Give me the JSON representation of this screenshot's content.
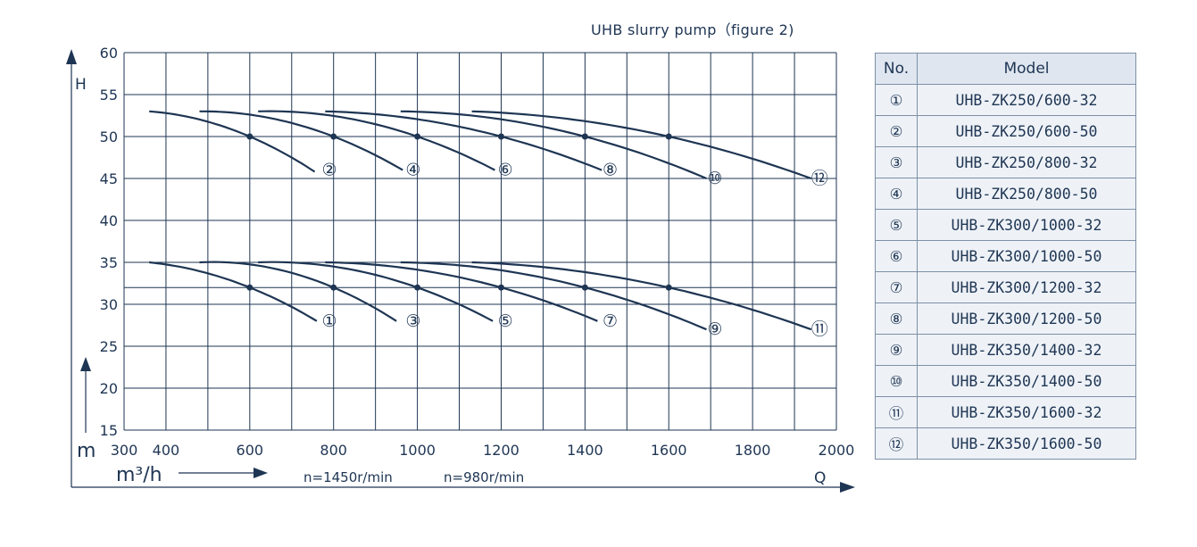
{
  "chart_data": {
    "type": "line",
    "title": "UHB slurry pump（figure 2)",
    "ylabel": "H",
    "ylabel_unit": "m",
    "xlabel": "Q",
    "xlabel_unit": "m³/h",
    "speed_labels": [
      "n=1450r/min",
      "n=980r/min"
    ],
    "xlim": [
      300,
      2000
    ],
    "ylim": [
      15,
      60
    ],
    "x_ticks": [
      300,
      400,
      600,
      800,
      1000,
      1200,
      1400,
      1600,
      1800,
      2000
    ],
    "y_ticks": [
      15,
      20,
      25,
      30,
      35,
      40,
      45,
      50,
      55,
      60
    ],
    "reference_lines": [
      32
    ],
    "series": [
      {
        "name": "①",
        "points": [
          [
            360,
            35
          ],
          [
            600,
            32
          ],
          [
            760,
            28
          ]
        ],
        "marker": [
          600,
          32
        ]
      },
      {
        "name": "②",
        "points": [
          [
            360,
            53
          ],
          [
            600,
            50
          ],
          [
            755,
            45.8
          ]
        ],
        "marker": [
          600,
          50
        ]
      },
      {
        "name": "③",
        "points": [
          [
            480,
            35
          ],
          [
            800,
            32
          ],
          [
            950,
            28
          ]
        ],
        "marker": [
          800,
          32
        ]
      },
      {
        "name": "④",
        "points": [
          [
            480,
            53
          ],
          [
            800,
            50
          ],
          [
            965,
            46
          ]
        ],
        "marker": [
          800,
          50
        ]
      },
      {
        "name": "⑤",
        "points": [
          [
            620,
            35
          ],
          [
            1000,
            32
          ],
          [
            1180,
            28
          ]
        ],
        "marker": [
          1000,
          32
        ]
      },
      {
        "name": "⑥",
        "points": [
          [
            620,
            53
          ],
          [
            1000,
            50
          ],
          [
            1185,
            46
          ]
        ],
        "marker": [
          1000,
          50
        ]
      },
      {
        "name": "⑦",
        "points": [
          [
            780,
            35
          ],
          [
            1200,
            32
          ],
          [
            1430,
            28
          ]
        ],
        "marker": [
          1200,
          32
        ]
      },
      {
        "name": "⑧",
        "points": [
          [
            780,
            53
          ],
          [
            1200,
            50
          ],
          [
            1440,
            46
          ]
        ],
        "marker": [
          1200,
          50
        ]
      },
      {
        "name": "⑨",
        "points": [
          [
            960,
            35
          ],
          [
            1400,
            32
          ],
          [
            1690,
            27
          ]
        ],
        "marker": [
          1400,
          32
        ]
      },
      {
        "name": "⑩",
        "points": [
          [
            960,
            53
          ],
          [
            1400,
            50
          ],
          [
            1690,
            45
          ]
        ],
        "marker": [
          1400,
          50
        ]
      },
      {
        "name": "⑪",
        "points": [
          [
            1130,
            35
          ],
          [
            1600,
            32
          ],
          [
            1940,
            27
          ]
        ],
        "marker": [
          1600,
          32
        ]
      },
      {
        "name": "⑫",
        "points": [
          [
            1130,
            53
          ],
          [
            1600,
            50
          ],
          [
            1940,
            45
          ]
        ],
        "marker": [
          1600,
          50
        ]
      }
    ],
    "curve_labels": [
      {
        "text": "①",
        "x": 790,
        "y": 28
      },
      {
        "text": "②",
        "x": 790,
        "y": 46
      },
      {
        "text": "③",
        "x": 990,
        "y": 28
      },
      {
        "text": "④",
        "x": 990,
        "y": 46
      },
      {
        "text": "⑤",
        "x": 1210,
        "y": 28
      },
      {
        "text": "⑥",
        "x": 1210,
        "y": 46
      },
      {
        "text": "⑦",
        "x": 1460,
        "y": 28
      },
      {
        "text": "⑧",
        "x": 1460,
        "y": 46
      },
      {
        "text": "⑨",
        "x": 1710,
        "y": 27
      },
      {
        "text": "⑩",
        "x": 1710,
        "y": 45
      },
      {
        "text": "⑪",
        "x": 1960,
        "y": 27
      },
      {
        "text": "⑫",
        "x": 1960,
        "y": 45
      }
    ],
    "colors": {
      "line": "#1e3553",
      "grid": "#1e3553",
      "table_header": "#dfe6ef",
      "table_cell": "#eef2f7"
    }
  },
  "table": {
    "headers": {
      "no": "No.",
      "model": "Model"
    },
    "rows": [
      {
        "no": "①",
        "model": "UHB-ZK250/600-32"
      },
      {
        "no": "②",
        "model": "UHB-ZK250/600-50"
      },
      {
        "no": "③",
        "model": "UHB-ZK250/800-32"
      },
      {
        "no": "④",
        "model": "UHB-ZK250/800-50"
      },
      {
        "no": "⑤",
        "model": "UHB-ZK300/1000-32"
      },
      {
        "no": "⑥",
        "model": "UHB-ZK300/1000-50"
      },
      {
        "no": "⑦",
        "model": "UHB-ZK300/1200-32"
      },
      {
        "no": "⑧",
        "model": "UHB-ZK300/1200-50"
      },
      {
        "no": "⑨",
        "model": "UHB-ZK350/1400-32"
      },
      {
        "no": "⑩",
        "model": "UHB-ZK350/1400-50"
      },
      {
        "no": "⑪",
        "model": "UHB-ZK350/1600-32"
      },
      {
        "no": "⑫",
        "model": "UHB-ZK350/1600-50"
      }
    ]
  }
}
